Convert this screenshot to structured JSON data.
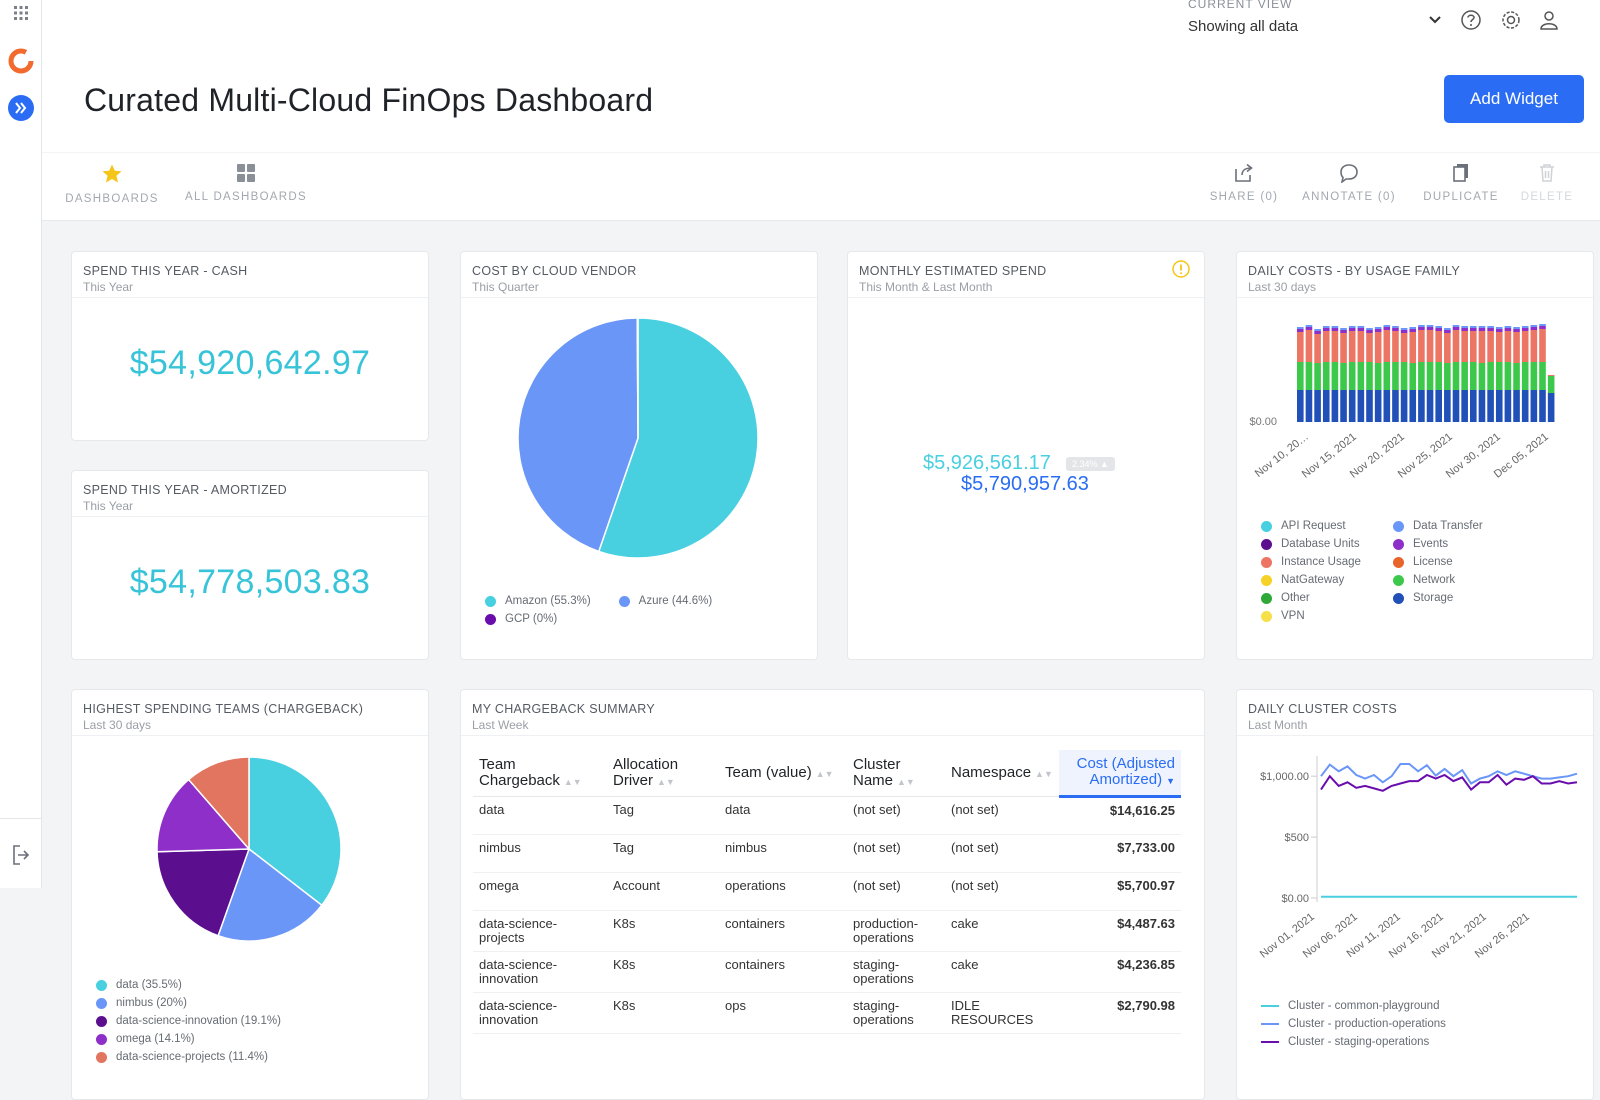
{
  "header": {
    "current_view_label": "CURRENT VIEW",
    "current_view_value": "Showing all data",
    "title": "Curated Multi-Cloud FinOps Dashboard",
    "add_widget": "Add Widget"
  },
  "toolbar": {
    "dashboards": "DASHBOARDS",
    "all_dashboards": "ALL DASHBOARDS",
    "share": "SHARE (0)",
    "annotate": "ANNOTATE (0)",
    "duplicate": "DUPLICATE",
    "delete": "DELETE"
  },
  "icons": [
    "apps-grid-icon",
    "logo-icon",
    "expand-sidebar-icon",
    "chevron-down-icon",
    "help-icon",
    "gear-icon",
    "user-icon",
    "star-icon",
    "grid-icon",
    "share-icon",
    "comment-icon",
    "duplicate-icon",
    "trash-icon",
    "logout-icon",
    "warning-icon"
  ],
  "colors": {
    "accent": "#2a6df4",
    "value": "#38c4d8"
  },
  "cards": {
    "cash": {
      "title": "SPEND THIS YEAR - CASH",
      "subtitle": "This Year",
      "value": "$54,920,642.97"
    },
    "amortized": {
      "title": "SPEND THIS YEAR - AMORTIZED",
      "subtitle": "This Year",
      "value": "$54,778,503.83"
    },
    "vendor": {
      "title": "COST BY CLOUD VENDOR",
      "subtitle": "This Quarter",
      "legend": [
        "Amazon (55.3%)",
        "Azure (44.6%)",
        "GCP (0%)"
      ]
    },
    "monthly": {
      "title": "MONTHLY ESTIMATED SPEND",
      "subtitle": "This Month & Last Month",
      "current": "$5,926,561.17",
      "badge": "2.34% ▲",
      "previous": "$5,790,957.63"
    },
    "daily_usage": {
      "title": "DAILY COSTS - BY USAGE FAMILY",
      "subtitle": "Last 30 days",
      "y_tick": "$0.00",
      "x_ticks": [
        "Nov 10, 20…",
        "Nov 15, 2021",
        "Nov 20, 2021",
        "Nov 25, 2021",
        "Nov 30, 2021",
        "Dec 05, 2021"
      ],
      "legend": [
        "API Request",
        "Data Transfer",
        "Database Units",
        "Events",
        "Instance Usage",
        "License",
        "NatGateway",
        "Network",
        "Other",
        "Storage",
        "VPN"
      ]
    },
    "teams": {
      "title": "HIGHEST SPENDING TEAMS (CHARGEBACK)",
      "subtitle": "Last 30 days",
      "legend": [
        "data (35.5%)",
        "nimbus (20%)",
        "data-science-innovation (19.1%)",
        "omega (14.1%)",
        "data-science-projects (11.4%)"
      ]
    },
    "chargeback": {
      "title": "MY CHARGEBACK SUMMARY",
      "subtitle": "Last Week",
      "headers": [
        "Team Chargeback",
        "Allocation Driver",
        "Team (value)",
        "Cluster Name",
        "Namespace",
        "Cost (Adjusted Amortized)"
      ],
      "rows": [
        [
          "data",
          "Tag",
          "data",
          "(not set)",
          "(not set)",
          "$14,616.25"
        ],
        [
          "nimbus",
          "Tag",
          "nimbus",
          "(not set)",
          "(not set)",
          "$7,733.00"
        ],
        [
          "omega",
          "Account",
          "operations",
          "(not set)",
          "(not set)",
          "$5,700.97"
        ],
        [
          "data-science-projects",
          "K8s",
          "containers",
          "production-operations",
          "cake",
          "$4,487.63"
        ],
        [
          "data-science-innovation",
          "K8s",
          "containers",
          "staging-operations",
          "cake",
          "$4,236.85"
        ],
        [
          "data-science-innovation",
          "K8s",
          "ops",
          "staging-operations",
          "IDLE RESOURCES",
          "$2,790.98"
        ]
      ]
    },
    "cluster": {
      "title": "DAILY CLUSTER COSTS",
      "subtitle": "Last Month",
      "y_ticks": [
        "$1,000.00",
        "$500",
        "$0.00"
      ],
      "x_ticks": [
        "Nov 01, 2021",
        "Nov 06, 2021",
        "Nov 11, 2021",
        "Nov 16, 2021",
        "Nov 21, 2021",
        "Nov 26, 2021"
      ],
      "legend": [
        "Cluster - common-playground",
        "Cluster - production-operations",
        "Cluster - staging-operations"
      ]
    }
  },
  "chart_data": [
    {
      "type": "pie",
      "title": "COST BY CLOUD VENDOR",
      "labels": [
        "Amazon",
        "Azure",
        "GCP"
      ],
      "values": [
        55.3,
        44.6,
        0.1
      ],
      "colors": [
        "#48cfe0",
        "#6a96f8",
        "#6a0dad"
      ]
    },
    {
      "type": "pie",
      "title": "HIGHEST SPENDING TEAMS (CHARGEBACK)",
      "labels": [
        "data",
        "nimbus",
        "data-science-innovation",
        "omega",
        "data-science-projects"
      ],
      "values": [
        35.5,
        20,
        19.1,
        14.1,
        11.4
      ],
      "colors": [
        "#48cfe0",
        "#6a96f8",
        "#5b0f8e",
        "#8e2fc9",
        "#e27560"
      ]
    },
    {
      "type": "bar",
      "stacked": true,
      "title": "DAILY COSTS - BY USAGE FAMILY",
      "x": [
        "Nov 08, 2021",
        "Nov 09, 2021",
        "Nov 10, 2021",
        "Nov 11, 2021",
        "Nov 12, 2021",
        "Nov 13, 2021",
        "Nov 14, 2021",
        "Nov 15, 2021",
        "Nov 16, 2021",
        "Nov 17, 2021",
        "Nov 18, 2021",
        "Nov 19, 2021",
        "Nov 20, 2021",
        "Nov 21, 2021",
        "Nov 22, 2021",
        "Nov 23, 2021",
        "Nov 24, 2021",
        "Nov 25, 2021",
        "Nov 26, 2021",
        "Nov 27, 2021",
        "Nov 28, 2021",
        "Nov 29, 2021",
        "Nov 30, 2021",
        "Dec 01, 2021",
        "Dec 02, 2021",
        "Dec 03, 2021",
        "Dec 04, 2021",
        "Dec 05, 2021",
        "Dec 06, 2021",
        "Dec 07, 2021"
      ],
      "series": [
        {
          "name": "Storage",
          "color": "#2150b8",
          "values": [
            32,
            32,
            32,
            32,
            32,
            32,
            32,
            32,
            32,
            32,
            32,
            32,
            32,
            32,
            32,
            32,
            32,
            32,
            32,
            32,
            32,
            32,
            32,
            32,
            32,
            32,
            32,
            32,
            32,
            29
          ]
        },
        {
          "name": "Network",
          "color": "#3cc84a",
          "values": [
            28,
            28,
            27,
            28,
            28,
            27,
            28,
            28,
            28,
            27,
            28,
            28,
            28,
            27,
            28,
            28,
            28,
            27,
            28,
            28,
            28,
            27,
            28,
            28,
            28,
            27,
            28,
            28,
            28,
            17
          ]
        },
        {
          "name": "Instance Usage",
          "color": "#ec7563",
          "values": [
            30,
            32,
            29,
            31,
            31,
            30,
            31,
            31,
            29,
            31,
            32,
            31,
            29,
            31,
            32,
            32,
            31,
            30,
            32,
            31,
            31,
            32,
            31,
            30,
            31,
            31,
            31,
            32,
            33,
            1
          ]
        },
        {
          "name": "Events",
          "color": "#8e2fc9",
          "values": [
            3,
            3,
            3,
            3,
            3,
            3,
            3,
            3,
            3,
            3,
            3,
            3,
            3,
            3,
            3,
            3,
            3,
            3,
            3,
            3,
            3,
            3,
            3,
            3,
            3,
            3,
            3,
            3,
            3,
            0
          ]
        },
        {
          "name": "Data Transfer",
          "color": "#6a96f8",
          "values": [
            2,
            2,
            2,
            2,
            2,
            2,
            2,
            2,
            2,
            2,
            2,
            2,
            2,
            2,
            2,
            2,
            2,
            2,
            2,
            2,
            2,
            2,
            2,
            2,
            2,
            2,
            2,
            2,
            2,
            0
          ]
        }
      ]
    },
    {
      "type": "line",
      "title": "DAILY CLUSTER COSTS",
      "ylim": [
        0,
        1100
      ],
      "x": [
        "Nov 01, 2021",
        "Nov 02, 2021",
        "Nov 03, 2021",
        "Nov 04, 2021",
        "Nov 05, 2021",
        "Nov 06, 2021",
        "Nov 07, 2021",
        "Nov 08, 2021",
        "Nov 09, 2021",
        "Nov 10, 2021",
        "Nov 11, 2021",
        "Nov 12, 2021",
        "Nov 13, 2021",
        "Nov 14, 2021",
        "Nov 15, 2021",
        "Nov 16, 2021",
        "Nov 17, 2021",
        "Nov 18, 2021",
        "Nov 19, 2021",
        "Nov 20, 2021",
        "Nov 21, 2021",
        "Nov 22, 2021",
        "Nov 23, 2021",
        "Nov 24, 2021",
        "Nov 25, 2021",
        "Nov 26, 2021",
        "Nov 27, 2021",
        "Nov 28, 2021",
        "Nov 29, 2021",
        "Nov 30, 2021"
      ],
      "series": [
        {
          "name": "Cluster - common-playground",
          "color": "#48cfe0",
          "values": [
            10,
            10,
            10,
            10,
            10,
            10,
            10,
            10,
            10,
            10,
            10,
            10,
            10,
            10,
            10,
            10,
            10,
            10,
            10,
            10,
            10,
            10,
            10,
            10,
            10,
            10,
            10,
            10,
            10,
            10
          ]
        },
        {
          "name": "Cluster - production-operations",
          "color": "#6a96f8",
          "values": [
            1000,
            1095,
            1040,
            1080,
            1010,
            980,
            1010,
            950,
            1000,
            1100,
            1100,
            1040,
            1090,
            1005,
            1060,
            1000,
            1050,
            940,
            980,
            1000,
            1040,
            1010,
            1040,
            1020,
            1000,
            980,
            980,
            990,
            1000,
            1020
          ]
        },
        {
          "name": "Cluster - staging-operations",
          "color": "#6a0dad",
          "values": [
            890,
            1000,
            920,
            950,
            905,
            920,
            900,
            880,
            920,
            940,
            960,
            960,
            1010,
            980,
            1010,
            960,
            990,
            890,
            950,
            950,
            1010,
            930,
            980,
            970,
            1000,
            940,
            940,
            960,
            940,
            950
          ]
        }
      ]
    }
  ]
}
